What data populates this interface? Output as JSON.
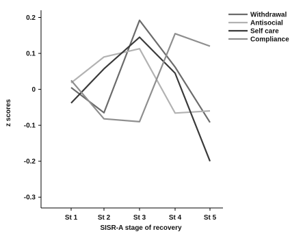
{
  "chart_data": {
    "type": "line",
    "categories": [
      "St 1",
      "St 2",
      "St 3",
      "St 4",
      "St 5"
    ],
    "xlabel": "SISR-A stage of recovery",
    "ylabel": "z scores",
    "ylim": [
      -0.33,
      0.22
    ],
    "yticks": [
      0.2,
      0.1,
      0,
      -0.1,
      -0.2,
      -0.3
    ],
    "ytick_labels": [
      "0.2",
      "0.1",
      "0",
      "-0.1",
      "-0.2",
      "-0.3"
    ],
    "grid": false,
    "legend_position": "top-right",
    "series": [
      {
        "name": "Withdrawal",
        "color": "#6b6b6b",
        "values": [
          0.005,
          -0.065,
          0.192,
          0.062,
          -0.092
        ]
      },
      {
        "name": "Antisocial",
        "color": "#b2b2b2",
        "values": [
          0.018,
          0.09,
          0.113,
          -0.066,
          -0.06
        ]
      },
      {
        "name": "Self care",
        "color": "#3a3a3a",
        "values": [
          -0.038,
          0.057,
          0.145,
          0.045,
          -0.2
        ]
      },
      {
        "name": "Compliance",
        "color": "#8e8e8e",
        "values": [
          0.025,
          -0.082,
          -0.09,
          0.155,
          0.12
        ]
      }
    ]
  }
}
